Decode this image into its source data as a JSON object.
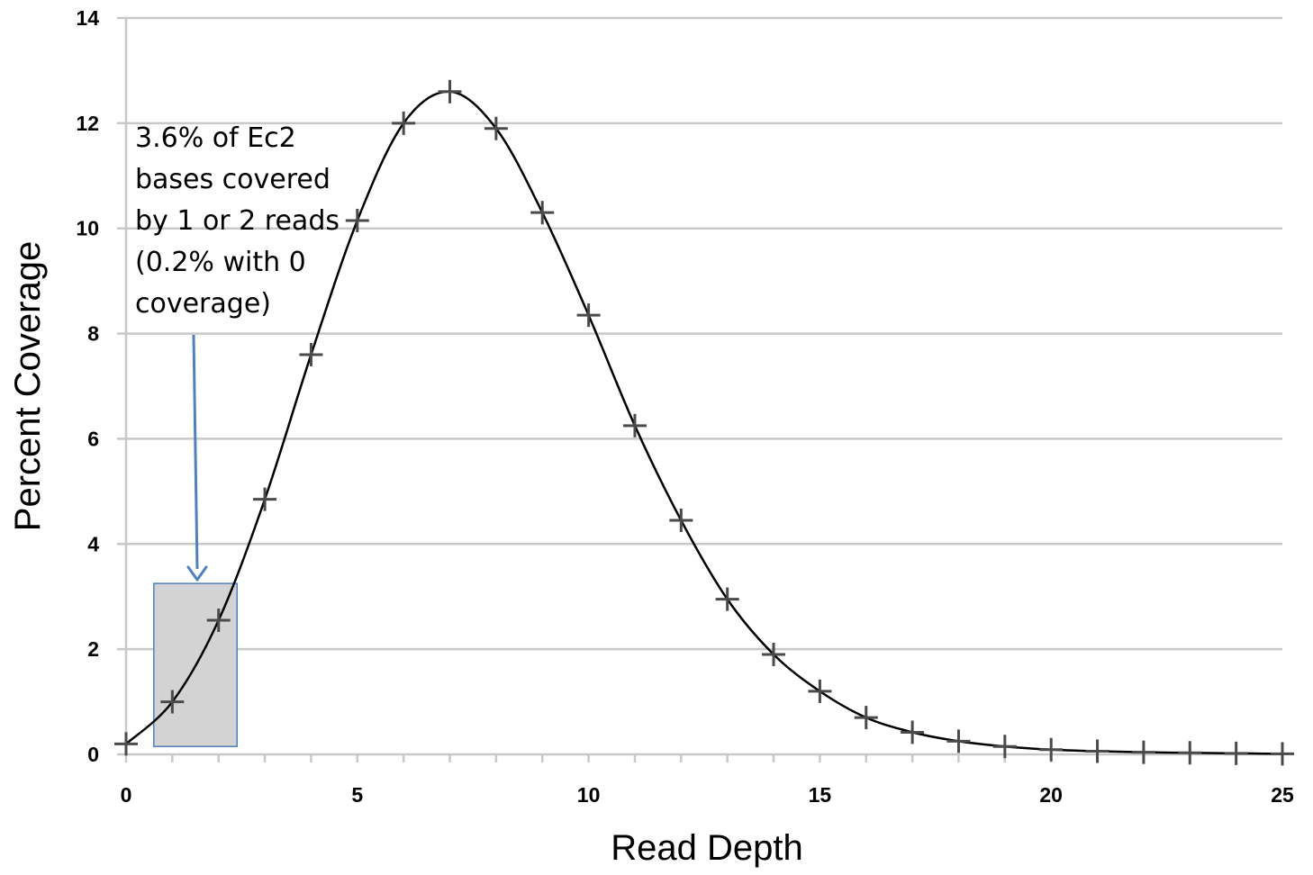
{
  "chart_data": {
    "type": "line",
    "xlabel": "Read Depth",
    "ylabel": "Percent Coverage",
    "xlim": [
      0,
      25
    ],
    "ylim": [
      0,
      14
    ],
    "xticks": [
      "0",
      "5",
      "10",
      "15",
      "20",
      "25"
    ],
    "yticks": [
      "0",
      "2",
      "4",
      "6",
      "8",
      "10",
      "12",
      "14"
    ],
    "grid": "horizontal",
    "legend": "none",
    "series": [
      {
        "x": [
          0,
          1,
          2,
          3,
          4,
          5,
          6,
          7,
          8,
          9,
          10,
          11,
          12,
          13,
          14,
          15,
          16,
          17,
          18,
          19,
          20,
          21,
          22,
          23,
          24,
          25
        ],
        "y": [
          0.2,
          1.0,
          2.55,
          4.85,
          7.6,
          10.15,
          12.0,
          12.6,
          11.9,
          10.3,
          8.35,
          6.25,
          4.45,
          2.95,
          1.9,
          1.2,
          0.7,
          0.42,
          0.25,
          0.15,
          0.09,
          0.06,
          0.04,
          0.03,
          0.02,
          0.01
        ],
        "marker": "plus",
        "fit_line": true
      }
    ],
    "annotation": {
      "lines": [
        "3.6% of Ec2",
        "bases covered",
        "by 1 or 2 reads",
        "(0.2% with 0",
        "coverage)"
      ],
      "highlight_x_range": [
        0.6,
        2.4
      ],
      "highlight_y_range": [
        0.15,
        3.25
      ]
    },
    "colors": {
      "line": "#000000",
      "marker": "#4a4a4a",
      "grid": "#c8c8c8",
      "axis": "#c8c8c8",
      "arrow": "#4f81bd",
      "highlight_fill": "#d3d3d3",
      "highlight_stroke": "#4f81bd"
    }
  }
}
